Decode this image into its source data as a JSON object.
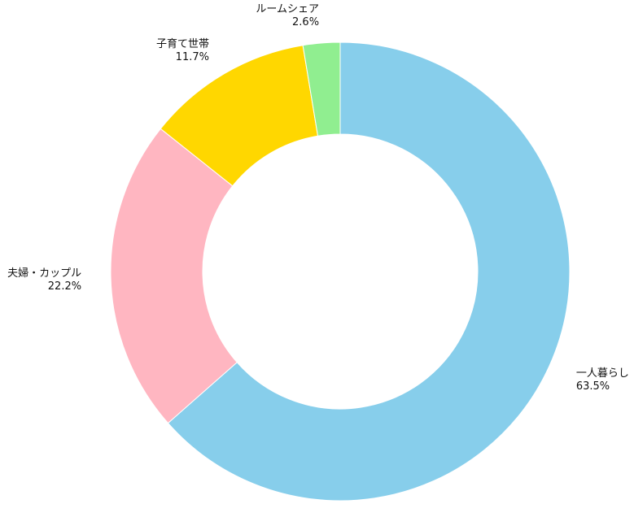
{
  "chart_data": {
    "type": "pie",
    "style": "donut",
    "start_angle_deg": 90,
    "direction": "clockwise",
    "slices": [
      {
        "label": "一人暮らし",
        "value": 63.5,
        "pct_label": "63.5%",
        "color": "#87CEEB"
      },
      {
        "label": "夫婦・カップル",
        "value": 22.2,
        "pct_label": "22.2%",
        "color": "#FFB6C1"
      },
      {
        "label": "子育て世帯",
        "value": 11.7,
        "pct_label": "11.7%",
        "color": "#FFD700"
      },
      {
        "label": "ルームシェア",
        "value": 2.6,
        "pct_label": "2.6%",
        "color": "#90EE90"
      }
    ],
    "legend": "none"
  }
}
